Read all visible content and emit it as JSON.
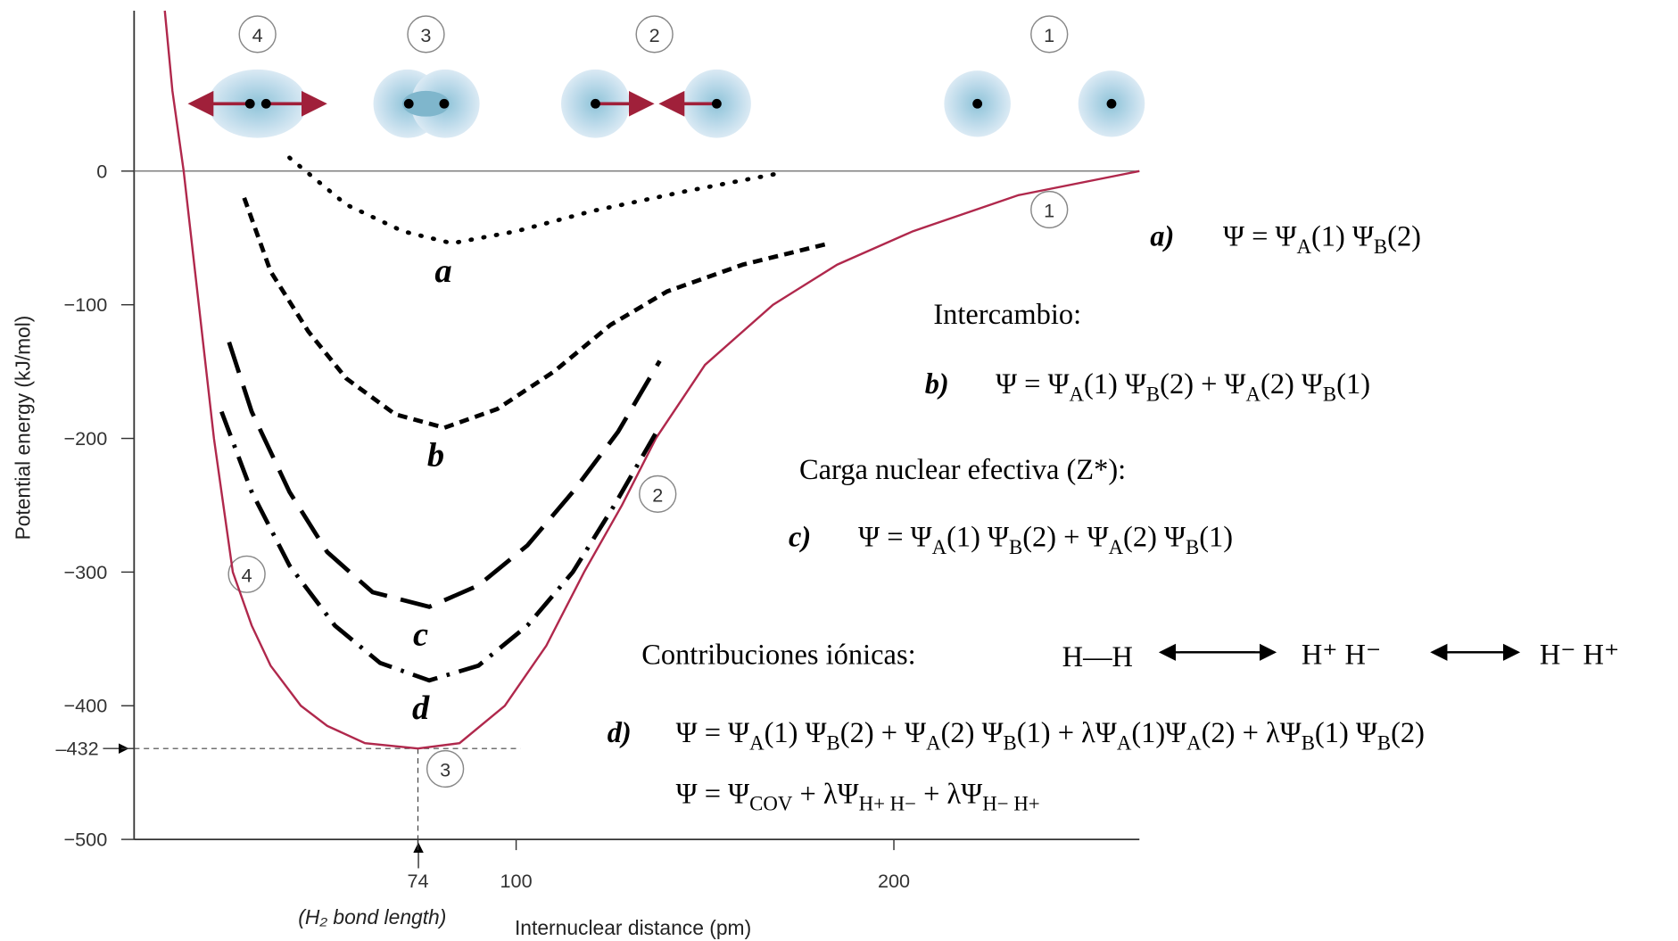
{
  "chart_data": {
    "type": "line",
    "xlabel": "Internuclear distance (pm)",
    "ylabel": "Potential energy (kJ/mol)",
    "xnote": "(H₂ bond length)",
    "xlim": [
      0,
      265
    ],
    "ylim": [
      -500,
      120
    ],
    "xticks": [
      74,
      100,
      200
    ],
    "yticks": [
      0,
      {
        "value": -100,
        "label": "−100"
      },
      {
        "value": -200,
        "label": "−200"
      },
      {
        "value": -300,
        "label": "−300"
      },
      {
        "value": -400,
        "label": "−400"
      },
      {
        "value": -432,
        "label": "–432"
      },
      {
        "value": -500,
        "label": "−500"
      }
    ],
    "grid": false,
    "series": [
      {
        "color": "#b0284c",
        "linestyle": "solid",
        "x": [
          7,
          9,
          12,
          16,
          20,
          25,
          30,
          35,
          43,
          50,
          60,
          74,
          85,
          97,
          108,
          118,
          128,
          137,
          150,
          168,
          185,
          205,
          233,
          265
        ],
        "values": [
          120,
          60,
          0,
          -100,
          -200,
          -300,
          -340,
          -370,
          -400,
          -415,
          -428,
          -432,
          -428,
          -400,
          -355,
          -300,
          -250,
          -200,
          -145,
          -100,
          -70,
          -45,
          -18,
          0
        ]
      },
      {
        "name": "a",
        "color": "#000000",
        "linestyle": "dotted",
        "x": [
          40,
          55,
          70,
          83,
          100,
          120,
          145,
          169
        ],
        "values": [
          10,
          -25,
          -45,
          -54,
          -45,
          -30,
          -15,
          -2
        ]
      },
      {
        "name": "b",
        "color": "#000000",
        "linestyle": "dashed",
        "x": [
          28,
          35,
          45,
          55,
          68,
          81,
          95,
          110,
          125,
          140,
          160,
          183
        ],
        "values": [
          -20,
          -75,
          -120,
          -155,
          -182,
          -192,
          -178,
          -150,
          -115,
          -90,
          -70,
          -54
        ]
      },
      {
        "name": "c",
        "color": "#000000",
        "linestyle": "longdash",
        "x": [
          24,
          30,
          40,
          50,
          62,
          77,
          90,
          103,
          115,
          127,
          138
        ],
        "values": [
          -128,
          -180,
          -240,
          -285,
          -315,
          -326,
          -310,
          -280,
          -240,
          -195,
          -142
        ]
      },
      {
        "name": "d",
        "color": "#000000",
        "linestyle": "dashdot",
        "x": [
          22,
          30,
          40,
          52,
          64,
          77,
          90,
          103,
          115,
          126,
          137
        ],
        "values": [
          -180,
          -240,
          -295,
          -340,
          -368,
          -381,
          -370,
          -340,
          -300,
          -250,
          -196
        ]
      }
    ],
    "annotations": {
      "stages": [
        "4",
        "3",
        "2",
        "1"
      ],
      "curve_points": [
        "1",
        "2",
        "4",
        "3"
      ]
    }
  },
  "texts": {
    "exchange": "Intercambio:",
    "effective_charge": "Carga nuclear efectiva (Z*):",
    "ionic": "Contribuciones iónicas:",
    "resonance": [
      "H—H",
      "H⁺ H⁻",
      "H⁻ H⁺"
    ]
  },
  "equations": {
    "a": {
      "label": "a)",
      "lines": [
        [
          "Ψ = Ψ",
          {
            "sub": "A"
          },
          "(1) Ψ",
          {
            "sub": "B"
          },
          "(2)"
        ]
      ]
    },
    "b": {
      "label": "b)",
      "lines": [
        [
          "Ψ = Ψ",
          {
            "sub": "A"
          },
          "(1) Ψ",
          {
            "sub": "B"
          },
          "(2) + Ψ",
          {
            "sub": "A"
          },
          "(2) Ψ",
          {
            "sub": "B"
          },
          "(1)"
        ]
      ]
    },
    "c": {
      "label": "c)",
      "lines": [
        [
          "Ψ = Ψ",
          {
            "sub": "A"
          },
          "(1) Ψ",
          {
            "sub": "B"
          },
          "(2) + Ψ",
          {
            "sub": "A"
          },
          "(2) Ψ",
          {
            "sub": "B"
          },
          "(1)"
        ]
      ]
    },
    "d": {
      "label": "d)",
      "lines": [
        [
          "Ψ = Ψ",
          {
            "sub": "A"
          },
          "(1) Ψ",
          {
            "sub": "B"
          },
          "(2) + Ψ",
          {
            "sub": "A"
          },
          "(2) Ψ",
          {
            "sub": "B"
          },
          "(1) + λΨ",
          {
            "sub": "A"
          },
          "(1)Ψ",
          {
            "sub": "A"
          },
          "(2) + λΨ",
          {
            "sub": "B"
          },
          "(1) Ψ",
          {
            "sub": "B"
          },
          "(2)"
        ],
        [
          "Ψ = Ψ",
          {
            "sub": "COV"
          },
          " + λΨ",
          {
            "sub": "H+ H−"
          },
          " + λΨ",
          {
            "sub": "H− H+"
          }
        ]
      ]
    }
  }
}
